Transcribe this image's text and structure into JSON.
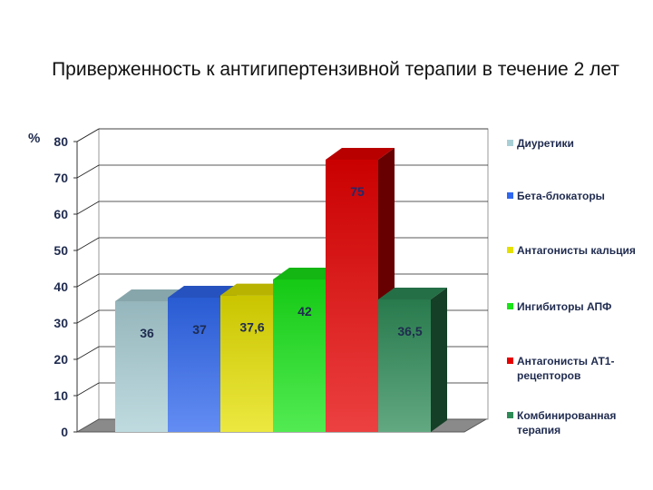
{
  "chart_data": {
    "type": "bar",
    "title": "Приверженность к антигипертензивной терапии в течение 2 лет",
    "ylabel": "%",
    "xlabel": "",
    "ylim": [
      0,
      80
    ],
    "yticks": [
      "0",
      "10",
      "20",
      "30",
      "40",
      "50",
      "60",
      "70",
      "80"
    ],
    "grid": true,
    "legend_position": "right",
    "series": [
      {
        "name": "Диуретики",
        "value": 36,
        "data_label": "36",
        "color": "#a9cfd6"
      },
      {
        "name": "Бета-блокаторы",
        "value": 37,
        "data_label": "37",
        "color": "#2f67ef"
      },
      {
        "name": "Антагонисты кальция",
        "value": 37.6,
        "data_label": "37,6",
        "color": "#e6e000"
      },
      {
        "name": "Ингибиторы АПФ",
        "value": 42,
        "data_label": "42",
        "color": "#18e418"
      },
      {
        "name": "Антагонисты АТ1-рецепторов",
        "value": 75,
        "data_label": "75",
        "color": "#e60000"
      },
      {
        "name": "Комбинированная терапия",
        "value": 36.5,
        "data_label": "36,5",
        "color": "#2e8b57"
      }
    ]
  }
}
